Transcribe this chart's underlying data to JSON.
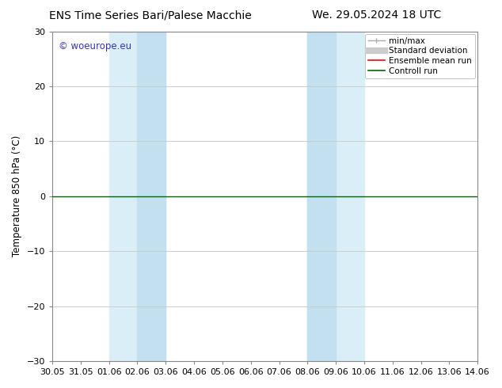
{
  "title_left": "ENS Time Series Bari/Palese Macchie",
  "title_right": "We. 29.05.2024 18 UTC",
  "ylabel": "Temperature 850 hPa (°C)",
  "ylim": [
    -30,
    30
  ],
  "yticks": [
    -30,
    -20,
    -10,
    0,
    10,
    20,
    30
  ],
  "xtick_labels": [
    "30.05",
    "31.05",
    "01.06",
    "02.06",
    "03.06",
    "04.06",
    "05.06",
    "06.06",
    "07.06",
    "08.06",
    "09.06",
    "10.06",
    "11.06",
    "12.06",
    "13.06",
    "14.06"
  ],
  "background_color": "#ffffff",
  "band1_outer": [
    2.0,
    4.0
  ],
  "band1_inner": [
    3.0,
    4.0
  ],
  "band2_outer": [
    9.0,
    11.0
  ],
  "band2_inner": [
    9.0,
    10.0
  ],
  "band_outer_color": "#daeef8",
  "band_inner_color": "#c2e0f0",
  "watermark": "© woeurope.eu",
  "watermark_color": "#3333cc",
  "line_color_green": "#006600",
  "line_color_red": "#ff0000",
  "grid_color": "#cccccc",
  "title_fontsize": 10,
  "tick_fontsize": 8,
  "label_fontsize": 8.5,
  "legend_fontsize": 7.5
}
